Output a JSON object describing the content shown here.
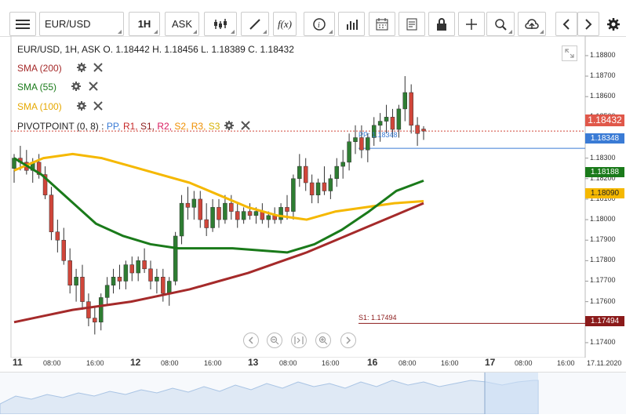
{
  "toolbar": {
    "symbol": "EUR/USD",
    "timeframe": "1H",
    "price_type": "ASK",
    "icons": [
      "menu-icon",
      "candles-icon",
      "draw-line-icon",
      "fx-icon",
      "info-icon",
      "bars-icon",
      "calendar-icon",
      "notes-icon",
      "lock-icon",
      "crosshair-icon",
      "zoom-icon",
      "cloud-upload-icon",
      "prev-icon",
      "next-icon",
      "settings-icon"
    ],
    "fx_label": "f(x)"
  },
  "legend": {
    "ohlc": "EUR/USD, 1H, ASK   O. 1.18442 H. 1.18456 L. 1.18389 C. 1.18432",
    "sma200": "SMA (200)",
    "sma55": "SMA (55)",
    "sma100": "SMA (100)",
    "pivot_name": "PIVOTPOINT (0, 8)",
    "pivot_sep": " : ",
    "pivot_pp": "PP,",
    "pivot_r1": "R1,",
    "pivot_s1": "S1,",
    "pivot_r2": "R2,",
    "pivot_s2": "S2,",
    "pivot_r3": "R3,",
    "pivot_s3": "S3"
  },
  "colors": {
    "sma200": "#a52a2a",
    "sma55": "#1a7a1a",
    "sma100": "#f5b800",
    "pp": "#3a7bd5",
    "s1": "#8b1a1a",
    "up": "#2e7d32",
    "down": "#d0463a"
  },
  "axis": {
    "ticks": [
      "1.18800",
      "1.18700",
      "1.18600",
      "1.18500",
      "1.18400",
      "1.18300",
      "1.18200",
      "1.18100",
      "1.18000",
      "1.17900",
      "1.17800",
      "1.17700",
      "1.17600",
      "1.17500",
      "1.17400"
    ],
    "time_labels": [
      {
        "t": "11",
        "bold": true
      },
      {
        "t": "08:00"
      },
      {
        "t": "16:00"
      },
      {
        "t": "12",
        "bold": true
      },
      {
        "t": "08:00"
      },
      {
        "t": "16:00"
      },
      {
        "t": "13",
        "bold": true
      },
      {
        "t": "08:00"
      },
      {
        "t": "16:00"
      },
      {
        "t": "16",
        "bold": true
      },
      {
        "t": "08:00"
      },
      {
        "t": "16:00"
      },
      {
        "t": "17",
        "bold": true
      },
      {
        "t": "08:00"
      },
      {
        "t": "16:00"
      },
      {
        "t": "17.11.2020"
      }
    ]
  },
  "price_tags": {
    "last": "1.18432",
    "pp": "1.18348",
    "sma55": "1.18188",
    "sma100": "1.18090",
    "s1": "1.17494"
  },
  "pivot_labels": {
    "pp": "PP: 1.18348",
    "s1": "S1: 1.17494"
  },
  "chart_data": {
    "type": "candlestick",
    "title": "EUR/USD, 1H, ASK",
    "ylim": [
      1.1735,
      1.1888
    ],
    "last_price": 1.18432,
    "pp": 1.18348,
    "s1": 1.17494,
    "candles": [
      [
        1.1825,
        1.1832,
        1.1818,
        1.183
      ],
      [
        1.183,
        1.1836,
        1.1824,
        1.1828
      ],
      [
        1.1828,
        1.1834,
        1.1822,
        1.1824
      ],
      [
        1.1824,
        1.183,
        1.1818,
        1.1828
      ],
      [
        1.1828,
        1.1832,
        1.182,
        1.1822
      ],
      [
        1.1822,
        1.1826,
        1.181,
        1.1812
      ],
      [
        1.1812,
        1.1816,
        1.179,
        1.1794
      ],
      [
        1.1794,
        1.18,
        1.1784,
        1.179
      ],
      [
        1.179,
        1.1796,
        1.1778,
        1.178
      ],
      [
        1.178,
        1.1786,
        1.1764,
        1.1768
      ],
      [
        1.1768,
        1.1776,
        1.176,
        1.1772
      ],
      [
        1.1772,
        1.1778,
        1.1756,
        1.176
      ],
      [
        1.176,
        1.1764,
        1.1748,
        1.1752
      ],
      [
        1.1752,
        1.1758,
        1.1744,
        1.175
      ],
      [
        1.175,
        1.1764,
        1.1746,
        1.1762
      ],
      [
        1.1762,
        1.1772,
        1.1758,
        1.1768
      ],
      [
        1.1768,
        1.1776,
        1.1764,
        1.1772
      ],
      [
        1.1772,
        1.1778,
        1.1766,
        1.177
      ],
      [
        1.177,
        1.178,
        1.1766,
        1.1778
      ],
      [
        1.1778,
        1.1782,
        1.177,
        1.1774
      ],
      [
        1.1774,
        1.1782,
        1.177,
        1.178
      ],
      [
        1.178,
        1.1786,
        1.1774,
        1.1776
      ],
      [
        1.1776,
        1.178,
        1.1766,
        1.177
      ],
      [
        1.177,
        1.1776,
        1.1764,
        1.1772
      ],
      [
        1.1772,
        1.1776,
        1.176,
        1.1764
      ],
      [
        1.1764,
        1.1772,
        1.1758,
        1.177
      ],
      [
        1.177,
        1.1794,
        1.1768,
        1.1792
      ],
      [
        1.1792,
        1.1812,
        1.1788,
        1.1808
      ],
      [
        1.1808,
        1.1816,
        1.18,
        1.1806
      ],
      [
        1.1806,
        1.1814,
        1.18,
        1.181
      ],
      [
        1.181,
        1.1814,
        1.1796,
        1.18
      ],
      [
        1.18,
        1.1808,
        1.1792,
        1.1796
      ],
      [
        1.1796,
        1.181,
        1.1794,
        1.1806
      ],
      [
        1.1806,
        1.181,
        1.1796,
        1.18
      ],
      [
        1.18,
        1.1812,
        1.1798,
        1.1808
      ],
      [
        1.1808,
        1.1812,
        1.18,
        1.1804
      ],
      [
        1.1804,
        1.1808,
        1.1796,
        1.18
      ],
      [
        1.18,
        1.1806,
        1.1798,
        1.1804
      ],
      [
        1.1804,
        1.1808,
        1.18,
        1.1802
      ],
      [
        1.1802,
        1.1806,
        1.1798,
        1.1804
      ],
      [
        1.1804,
        1.1808,
        1.1798,
        1.18
      ],
      [
        1.18,
        1.1804,
        1.1796,
        1.1802
      ],
      [
        1.1802,
        1.1806,
        1.1798,
        1.18
      ],
      [
        1.18,
        1.1808,
        1.1798,
        1.1806
      ],
      [
        1.1806,
        1.1812,
        1.18,
        1.1804
      ],
      [
        1.1804,
        1.1822,
        1.18,
        1.182
      ],
      [
        1.182,
        1.1832,
        1.1816,
        1.1826
      ],
      [
        1.1826,
        1.183,
        1.1814,
        1.1818
      ],
      [
        1.1818,
        1.1822,
        1.1808,
        1.1812
      ],
      [
        1.1812,
        1.182,
        1.1808,
        1.1818
      ],
      [
        1.1818,
        1.1826,
        1.1812,
        1.1814
      ],
      [
        1.1814,
        1.1822,
        1.181,
        1.182
      ],
      [
        1.182,
        1.183,
        1.1816,
        1.1826
      ],
      [
        1.1826,
        1.1834,
        1.182,
        1.1828
      ],
      [
        1.1828,
        1.1842,
        1.1824,
        1.1838
      ],
      [
        1.1838,
        1.1846,
        1.1832,
        1.184
      ],
      [
        1.184,
        1.1846,
        1.183,
        1.1834
      ],
      [
        1.1834,
        1.1842,
        1.1828,
        1.184
      ],
      [
        1.184,
        1.185,
        1.1836,
        1.1846
      ],
      [
        1.1846,
        1.1852,
        1.1838,
        1.1848
      ],
      [
        1.1848,
        1.1856,
        1.1842,
        1.185
      ],
      [
        1.185,
        1.1854,
        1.184,
        1.1844
      ],
      [
        1.1844,
        1.1856,
        1.184,
        1.1854
      ],
      [
        1.1854,
        1.187,
        1.1848,
        1.1862
      ],
      [
        1.1862,
        1.1866,
        1.1842,
        1.1846
      ],
      [
        1.1846,
        1.185,
        1.1836,
        1.1842
      ],
      [
        1.18442,
        1.18456,
        1.18389,
        1.18432
      ]
    ],
    "sma200": [
      1.175,
      1.1753,
      1.1756,
      1.1758,
      1.176,
      1.1763,
      1.1766,
      1.177,
      1.1774,
      1.1779,
      1.1784,
      1.179,
      1.1796,
      1.1802,
      1.1808
    ],
    "sma55": [
      1.183,
      1.1822,
      1.181,
      1.1798,
      1.1792,
      1.1788,
      1.1786,
      1.1786,
      1.1786,
      1.1785,
      1.1784,
      1.1788,
      1.1795,
      1.1804,
      1.1814,
      1.1819
    ],
    "sma100": [
      1.1824,
      1.183,
      1.1832,
      1.183,
      1.1826,
      1.1822,
      1.1818,
      1.1812,
      1.1806,
      1.1802,
      1.18,
      1.1804,
      1.1806,
      1.1808,
      1.1809
    ]
  }
}
